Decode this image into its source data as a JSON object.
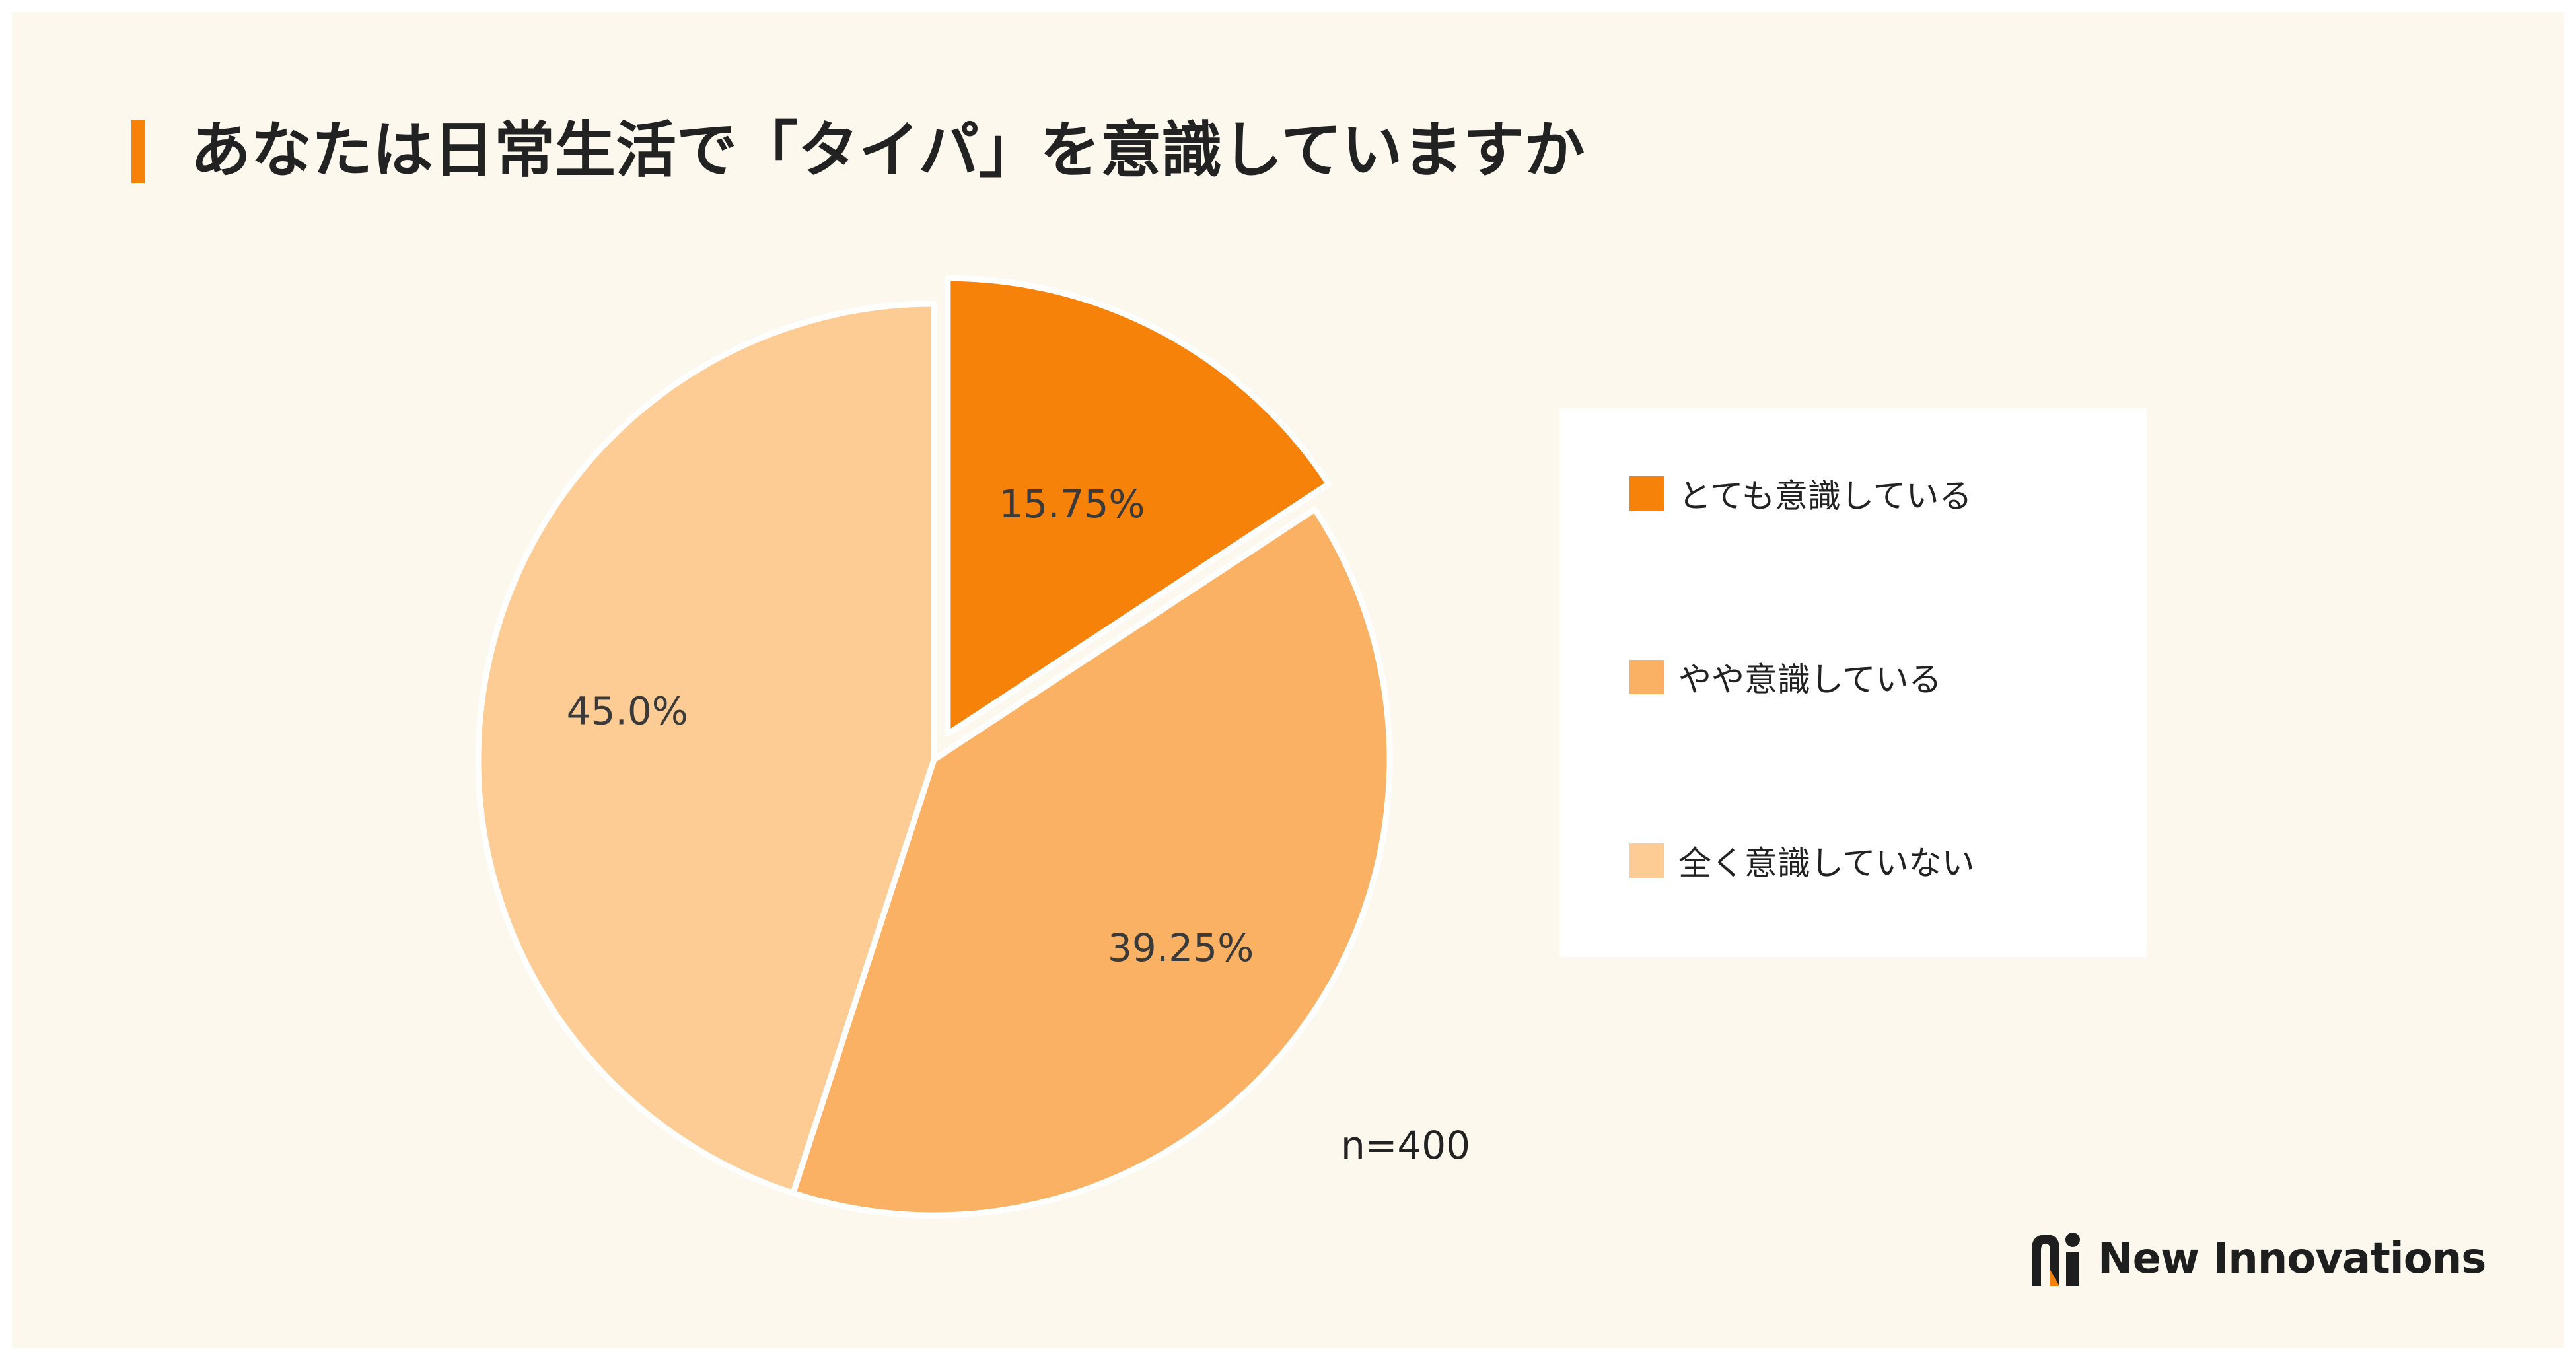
{
  "title": "あなたは日常生活で「タイパ」を意識していますか",
  "sample_size": "n=400",
  "logo_text": "New Innovations",
  "colors": {
    "accent": "#f7820a",
    "background": "#fdf8ee",
    "slice_1": "#f7820a",
    "slice_2": "#fbb163",
    "slice_3": "#fdcc94"
  },
  "chart_data": {
    "type": "pie",
    "title": "あなたは日常生活で「タイパ」を意識していますか",
    "categories": [
      "とても意識している",
      "やや意識している",
      "全く意識していない"
    ],
    "values": [
      15.75,
      39.25,
      45.0
    ],
    "data_labels": [
      "15.75%",
      "39.25%",
      "45.0%"
    ],
    "colors": [
      "#f7820a",
      "#fbb163",
      "#fdcc94"
    ],
    "start_angle": "12 o'clock, clockwise",
    "exploded_slices": [
      0
    ],
    "legend_position": "right"
  }
}
